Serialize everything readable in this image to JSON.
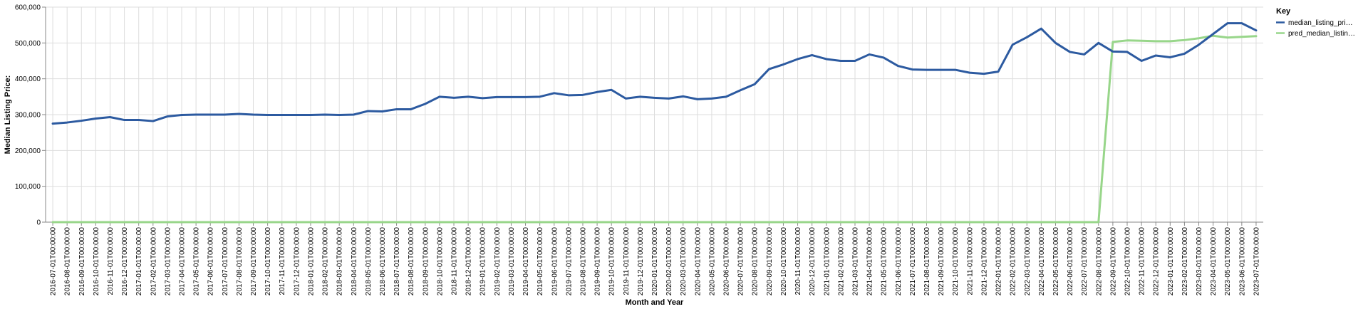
{
  "chart_data": {
    "type": "line",
    "xlabel": "Month and Year",
    "ylabel": "Median Listing Price:",
    "ylim": [
      0,
      600000
    ],
    "yticks": [
      0,
      100000,
      200000,
      300000,
      400000,
      500000,
      600000
    ],
    "ytick_labels": [
      "0",
      "100,000",
      "200,000",
      "300,000",
      "400,000",
      "500,000",
      "600,000"
    ],
    "grid": true,
    "legend": {
      "title": "Key",
      "placement": "top-right"
    },
    "x": [
      "2016-07-01T00:00:00",
      "2016-08-01T00:00:00",
      "2016-09-01T00:00:00",
      "2016-10-01T00:00:00",
      "2016-11-01T00:00:00",
      "2016-12-01T00:00:00",
      "2017-01-01T00:00:00",
      "2017-02-01T00:00:00",
      "2017-03-01T00:00:00",
      "2017-04-01T00:00:00",
      "2017-05-01T00:00:00",
      "2017-06-01T00:00:00",
      "2017-07-01T00:00:00",
      "2017-08-01T00:00:00",
      "2017-09-01T00:00:00",
      "2017-10-01T00:00:00",
      "2017-11-01T00:00:00",
      "2017-12-01T00:00:00",
      "2018-01-01T00:00:00",
      "2018-02-01T00:00:00",
      "2018-03-01T00:00:00",
      "2018-04-01T00:00:00",
      "2018-05-01T00:00:00",
      "2018-06-01T00:00:00",
      "2018-07-01T00:00:00",
      "2018-08-01T00:00:00",
      "2018-09-01T00:00:00",
      "2018-10-01T00:00:00",
      "2018-11-01T00:00:00",
      "2018-12-01T00:00:00",
      "2019-01-01T00:00:00",
      "2019-02-01T00:00:00",
      "2019-03-01T00:00:00",
      "2019-04-01T00:00:00",
      "2019-05-01T00:00:00",
      "2019-06-01T00:00:00",
      "2019-07-01T00:00:00",
      "2019-08-01T00:00:00",
      "2019-09-01T00:00:00",
      "2019-10-01T00:00:00",
      "2019-11-01T00:00:00",
      "2019-12-01T00:00:00",
      "2020-01-01T00:00:00",
      "2020-02-01T00:00:00",
      "2020-03-01T00:00:00",
      "2020-04-01T00:00:00",
      "2020-05-01T00:00:00",
      "2020-06-01T00:00:00",
      "2020-07-01T00:00:00",
      "2020-08-01T00:00:00",
      "2020-09-01T00:00:00",
      "2020-10-01T00:00:00",
      "2020-11-01T00:00:00",
      "2020-12-01T00:00:00",
      "2021-01-01T00:00:00",
      "2021-02-01T00:00:00",
      "2021-03-01T00:00:00",
      "2021-04-01T00:00:00",
      "2021-05-01T00:00:00",
      "2021-06-01T00:00:00",
      "2021-07-01T00:00:00",
      "2021-08-01T00:00:00",
      "2021-09-01T00:00:00",
      "2021-10-01T00:00:00",
      "2021-11-01T00:00:00",
      "2021-12-01T00:00:00",
      "2022-01-01T00:00:00",
      "2022-02-01T00:00:00",
      "2022-03-01T00:00:00",
      "2022-04-01T00:00:00",
      "2022-05-01T00:00:00",
      "2022-06-01T00:00:00",
      "2022-07-01T00:00:00",
      "2022-08-01T00:00:00",
      "2022-09-01T00:00:00",
      "2022-10-01T00:00:00",
      "2022-11-01T00:00:00",
      "2022-12-01T00:00:00",
      "2023-01-01T00:00:00",
      "2023-02-01T00:00:00",
      "2023-03-01T00:00:00",
      "2023-04-01T00:00:00",
      "2023-05-01T00:00:00",
      "2023-06-01T00:00:00",
      "2023-07-01T00:00:00"
    ],
    "series": [
      {
        "name": "median_listing_pri…",
        "color": "#2c5aa0",
        "values": [
          275000,
          278000,
          283000,
          289000,
          293000,
          285000,
          285000,
          282000,
          295000,
          299000,
          300000,
          300000,
          300000,
          302000,
          300000,
          299000,
          299000,
          299000,
          299000,
          300000,
          299000,
          300000,
          310000,
          309000,
          315000,
          315000,
          330000,
          350000,
          347000,
          350000,
          346000,
          349000,
          349000,
          349000,
          350000,
          360000,
          354000,
          355000,
          363000,
          369000,
          345000,
          350000,
          347000,
          345000,
          351000,
          343000,
          345000,
          350000,
          368000,
          385000,
          427000,
          440000,
          455000,
          466000,
          455000,
          450000,
          450000,
          468000,
          459000,
          436000,
          426000,
          425000,
          425000,
          425000,
          417000,
          414000,
          420000,
          495000,
          516000,
          540000,
          500000,
          475000,
          468000,
          500000,
          476000,
          475000,
          450000,
          465000,
          460000,
          470000,
          495000,
          525000,
          555000,
          555000,
          535000
        ]
      },
      {
        "name": "pred_median_listin…",
        "color": "#98d68a",
        "values": [
          0,
          0,
          0,
          0,
          0,
          0,
          0,
          0,
          0,
          0,
          0,
          0,
          0,
          0,
          0,
          0,
          0,
          0,
          0,
          0,
          0,
          0,
          0,
          0,
          0,
          0,
          0,
          0,
          0,
          0,
          0,
          0,
          0,
          0,
          0,
          0,
          0,
          0,
          0,
          0,
          0,
          0,
          0,
          0,
          0,
          0,
          0,
          0,
          0,
          0,
          0,
          0,
          0,
          0,
          0,
          0,
          0,
          0,
          0,
          0,
          0,
          0,
          0,
          0,
          0,
          0,
          0,
          0,
          0,
          0,
          0,
          0,
          0,
          0,
          503000,
          507000,
          506000,
          505000,
          505000,
          508000,
          513000,
          520000,
          515000,
          517000,
          519000
        ]
      }
    ]
  }
}
